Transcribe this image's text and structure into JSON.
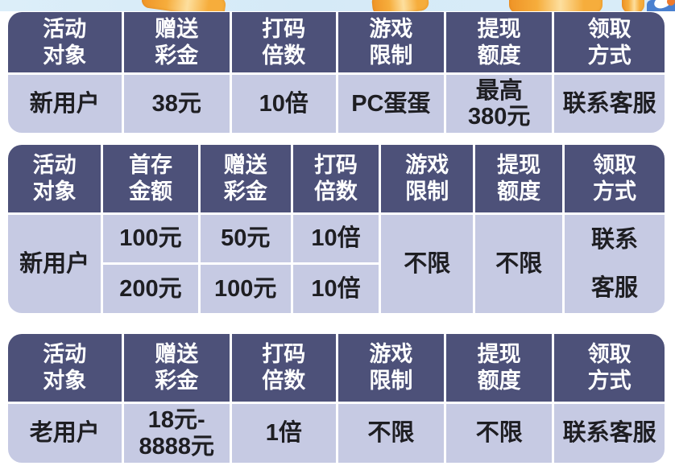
{
  "theme": {
    "header_bg": "#4d5179",
    "cell_bg": "#c6cae3",
    "border_color": "#ffffff",
    "header_text": "#ffffff",
    "cell_text": "#1e1e22",
    "banner_sky": "#d5eaf7",
    "coin_gold": "#f6ad3c",
    "banner_blue": "#4a80cf",
    "accent_orange": "#f07a2b"
  },
  "banner": {
    "icons": [
      "gold-coin",
      "gold-coin",
      "gold-coin",
      "gold-coin",
      "blue-ribbon"
    ]
  },
  "tables": [
    {
      "name": "new-user-free-bonus",
      "headers": [
        "活动\n对象",
        "赠送\n彩金",
        "打码\n倍数",
        "游戏\n限制",
        "提现\n额度",
        "领取\n方式"
      ],
      "row": [
        "新用户",
        "38元",
        "10倍",
        "PC蛋蛋",
        "最高\n380元",
        "联系客服"
      ]
    },
    {
      "name": "new-user-first-deposit",
      "headers": [
        "活动\n对象",
        "首存\n金额",
        "赠送\n彩金",
        "打码\n倍数",
        "游戏\n限制",
        "提现\n额度",
        "领取\n方式"
      ],
      "target": "新用户",
      "rows": [
        [
          "100元",
          "50元",
          "10倍"
        ],
        [
          "200元",
          "100元",
          "10倍"
        ]
      ],
      "game_limit": "不限",
      "withdraw_limit": "不限",
      "claim": "联系\n客服"
    },
    {
      "name": "old-user-bonus",
      "headers": [
        "活动\n对象",
        "赠送\n彩金",
        "打码\n倍数",
        "游戏\n限制",
        "提现\n额度",
        "领取\n方式"
      ],
      "row": [
        "老用户",
        "18元-\n8888元",
        "1倍",
        "不限",
        "不限",
        "联系客服"
      ]
    }
  ]
}
